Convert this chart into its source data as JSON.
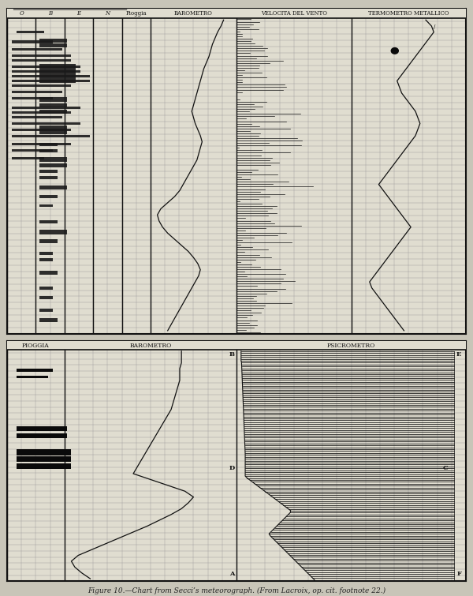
{
  "title": "Figure 10.—Chart from Secci’s meteorograph. (From Lacroix, op. cit. footnote 22.)",
  "paper_color": "#e0ddd0",
  "line_color": "#111111",
  "grid_color": "#999999",
  "panel1": {
    "header": "O  B  E  N  Pioggia   BAROMETRO        VELOCITA DEL VENTO              TERMOMETRO METALLICO",
    "n_rows": 52,
    "n_cols": 32,
    "section_boundaries": [
      0,
      2,
      4,
      6,
      8,
      10,
      16,
      24,
      32
    ],
    "header_labels": [
      [
        1,
        "O"
      ],
      [
        3,
        "B"
      ],
      [
        5,
        "E"
      ],
      [
        7,
        "N"
      ],
      [
        9,
        "Pioggia"
      ],
      [
        13,
        "BAROMETRO"
      ],
      [
        20,
        "VELOCITA DEL VENTO"
      ],
      [
        28,
        "TERMOMETRO METALLICO"
      ]
    ]
  },
  "panel2": {
    "n_rows": 40,
    "n_cols": 32,
    "section_boundaries": [
      0,
      4,
      16,
      32
    ],
    "header_labels": [
      [
        2,
        "PIOGGIA"
      ],
      [
        10,
        "BAROMETRO"
      ],
      [
        24,
        "PSICROMETRO"
      ]
    ]
  }
}
